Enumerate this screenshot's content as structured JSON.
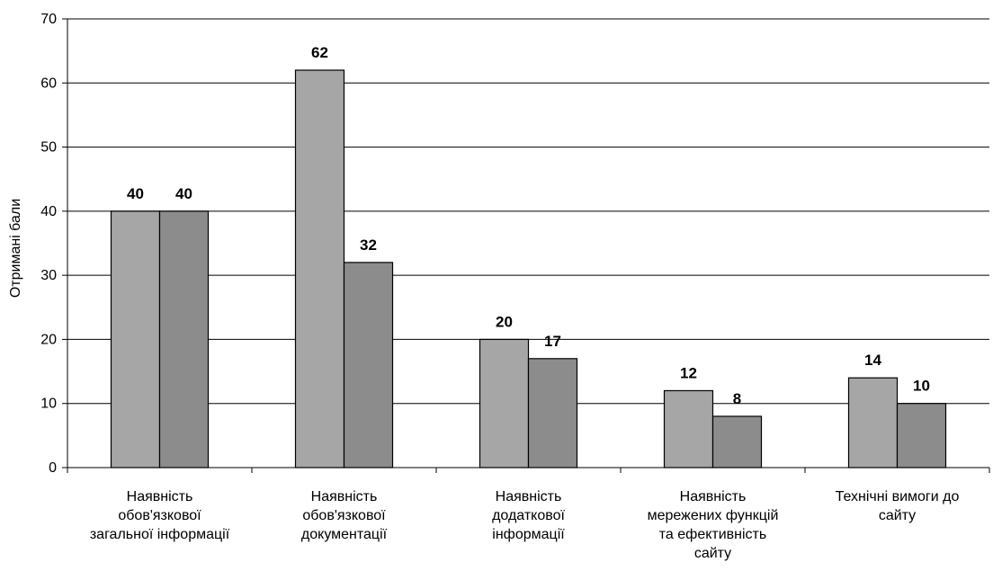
{
  "chart_data": {
    "type": "bar",
    "title": "",
    "xlabel": "",
    "ylabel": "Отримані бали",
    "ylim": [
      0,
      70
    ],
    "ytick_step": 10,
    "grid": true,
    "categories": [
      [
        "Наявність",
        "обов'язкової",
        "загальної інформації"
      ],
      [
        "Наявність",
        "обов'язкової",
        "документації"
      ],
      [
        "Наявність",
        "додаткової",
        "інформації"
      ],
      [
        "Наявність",
        "мережених функцій",
        "та ефективність",
        "сайту"
      ],
      [
        "Технічні вимоги до",
        "сайту"
      ]
    ],
    "series": [
      {
        "values": [
          40,
          62,
          20,
          12,
          14
        ],
        "color": "#a6a6a6"
      },
      {
        "values": [
          40,
          32,
          17,
          8,
          10
        ],
        "color": "#8c8c8c"
      }
    ],
    "data_labels": true
  }
}
